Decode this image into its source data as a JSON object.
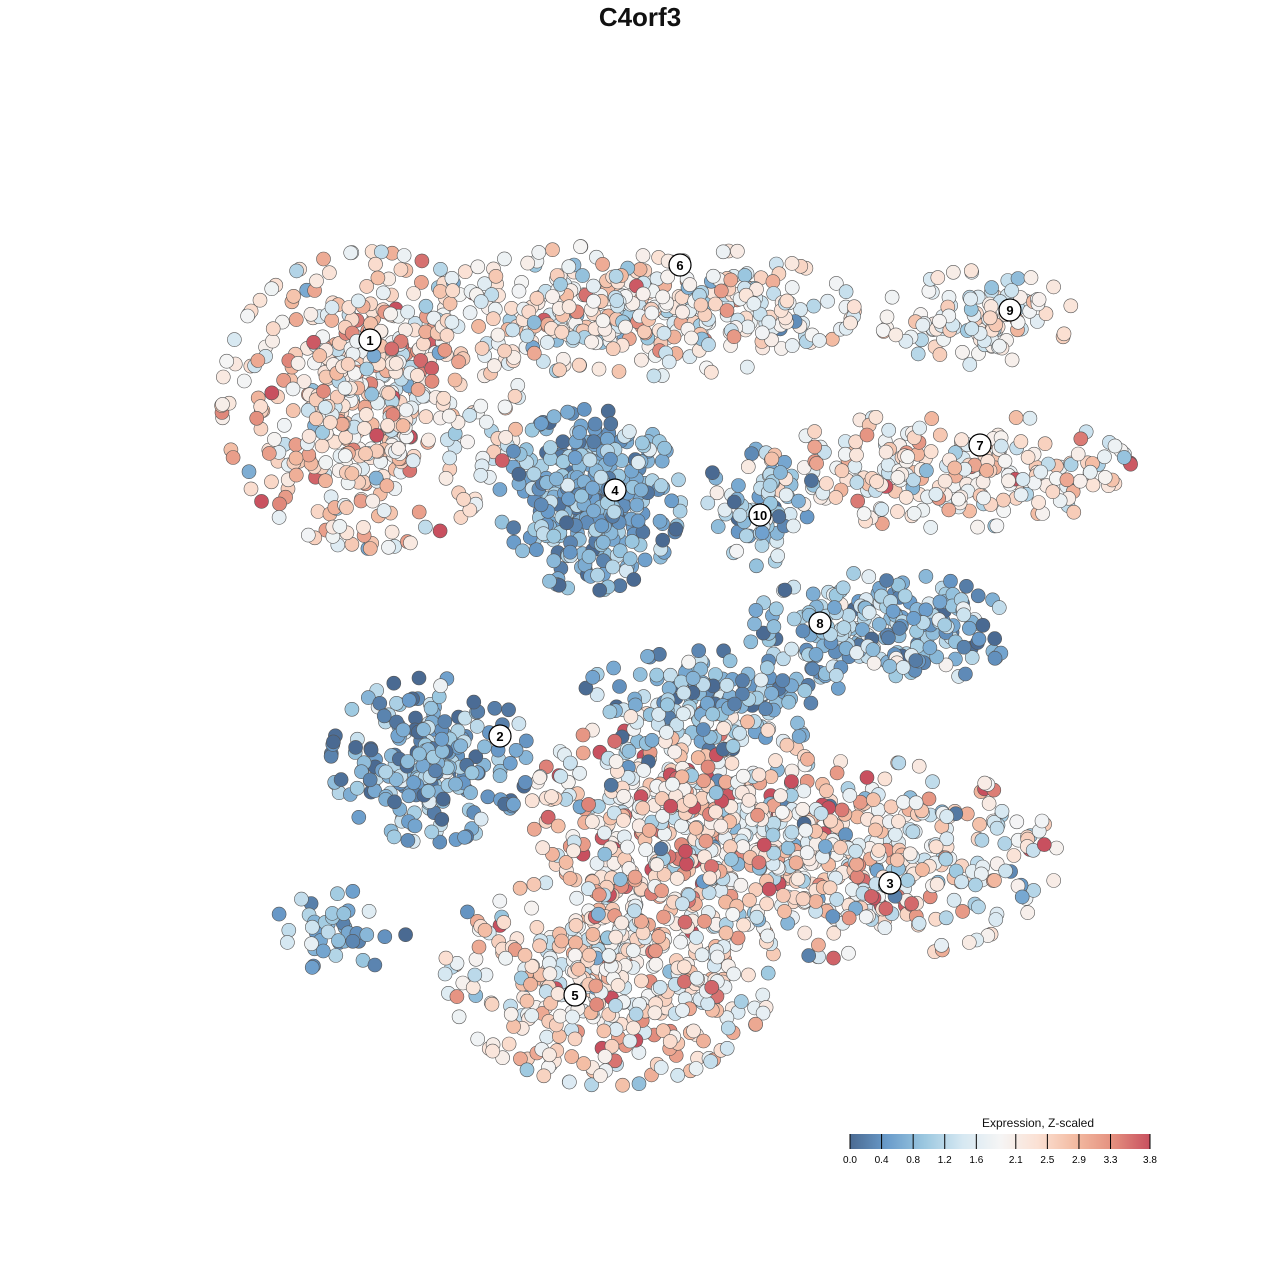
{
  "chart_data": {
    "type": "scatter",
    "title": "C4orf3",
    "xlabel": "",
    "ylabel": "",
    "xlim": [
      -44,
      48
    ],
    "ylim": [
      -46,
      46
    ],
    "grid": false,
    "seed": 7,
    "colorbar": {
      "title": "Expression, Z-scaled",
      "range": [
        0,
        3.8
      ],
      "ticks": [
        0.0,
        0.4,
        0.8,
        1.2,
        1.6,
        2.1,
        2.5,
        2.9,
        3.3,
        3.8
      ],
      "tick_labels": [
        "0.0",
        "0.4",
        "0.8",
        "1.2",
        "1.6",
        "2.1",
        "2.5",
        "2.9",
        "3.3",
        "3.8"
      ],
      "colors": [
        "#4a6a92",
        "#6a9ccb",
        "#9cc8e0",
        "#d6e8f2",
        "#f5f5f5",
        "#fbe1d4",
        "#f3bba2",
        "#e4907f",
        "#c8505f"
      ],
      "placement": "bottom-right"
    },
    "clusters": [
      {
        "label": "1",
        "center": [
          -27,
          24
        ],
        "spread": [
          9,
          9
        ],
        "count": 520,
        "mean_expr": 2.3,
        "sd_expr": 0.7,
        "label_pos": [
          -27,
          30
        ]
      },
      {
        "label": "6",
        "center": [
          0,
          33
        ],
        "spread": [
          13,
          4
        ],
        "count": 380,
        "mean_expr": 2.0,
        "sd_expr": 0.6,
        "label_pos": [
          4,
          37.5
        ]
      },
      {
        "label": "9",
        "center": [
          34,
          32
        ],
        "spread": [
          6,
          3
        ],
        "count": 110,
        "mean_expr": 1.9,
        "sd_expr": 0.5,
        "label_pos": [
          37,
          33
        ]
      },
      {
        "label": "7",
        "center": [
          31,
          17
        ],
        "spread": [
          11,
          3.5
        ],
        "count": 230,
        "mean_expr": 2.2,
        "sd_expr": 0.6,
        "label_pos": [
          34,
          19.5
        ]
      },
      {
        "label": "4",
        "center": [
          -5,
          14
        ],
        "spread": [
          5.5,
          5.5
        ],
        "count": 330,
        "mean_expr": 0.6,
        "sd_expr": 0.4,
        "label_pos": [
          -2.5,
          15
        ]
      },
      {
        "label": "10",
        "center": [
          12,
          13
        ],
        "spread": [
          3.5,
          4
        ],
        "count": 70,
        "mean_expr": 1.0,
        "sd_expr": 0.6,
        "label_pos": [
          12,
          12.5
        ]
      },
      {
        "label": "8",
        "center": [
          24,
          1
        ],
        "spread": [
          8,
          3.5
        ],
        "count": 220,
        "mean_expr": 0.8,
        "sd_expr": 0.5,
        "label_pos": [
          18,
          1.7
        ]
      },
      {
        "label": "2",
        "center": [
          -21,
          -12
        ],
        "spread": [
          6,
          5
        ],
        "count": 230,
        "mean_expr": 0.6,
        "sd_expr": 0.5,
        "label_pos": [
          -14,
          -9.6
        ]
      },
      {
        "label": "3",
        "center": [
          22,
          -22
        ],
        "spread": [
          12,
          6
        ],
        "count": 430,
        "mean_expr": 2.1,
        "sd_expr": 0.8,
        "label_pos": [
          25,
          -24.3
        ]
      },
      {
        "label": "5",
        "center": [
          -3,
          -33
        ],
        "spread": [
          10,
          7
        ],
        "count": 460,
        "mean_expr": 2.2,
        "sd_expr": 0.7,
        "label_pos": [
          -6.5,
          -35.5
        ]
      },
      {
        "label": "",
        "center": [
          4,
          -17
        ],
        "spread": [
          9,
          6
        ],
        "count": 380,
        "mean_expr": 2.3,
        "sd_expr": 0.9,
        "label_pos": null
      },
      {
        "label": "",
        "center": [
          7,
          -6
        ],
        "spread": [
          8,
          3
        ],
        "count": 160,
        "mean_expr": 0.7,
        "sd_expr": 0.5,
        "label_pos": null
      },
      {
        "label": "",
        "center": [
          -30,
          -29
        ],
        "spread": [
          4,
          2.5
        ],
        "count": 40,
        "mean_expr": 0.7,
        "sd_expr": 0.4,
        "label_pos": null
      }
    ]
  }
}
